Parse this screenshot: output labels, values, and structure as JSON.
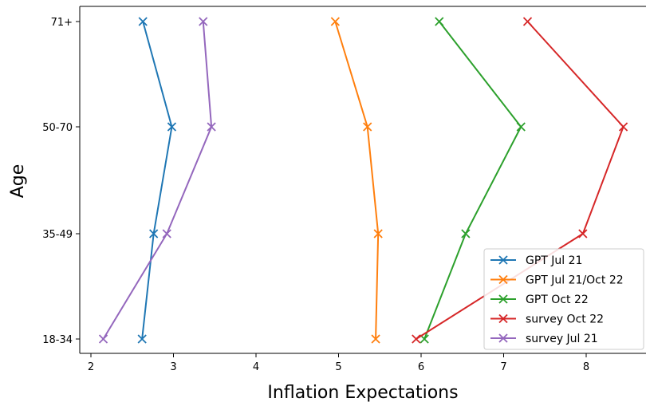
{
  "chart_data": {
    "type": "line",
    "orientation": "horizontal",
    "xlabel": "Inflation Expectations",
    "ylabel": "Age",
    "categories": [
      "18-34",
      "35-49",
      "50-70",
      "71+"
    ],
    "x_ticks": [
      2,
      3,
      4,
      5,
      6,
      7,
      8
    ],
    "xlim": [
      1.9,
      8.75
    ],
    "grid": false,
    "legend_position": "bottom-right",
    "marker": "x",
    "series": [
      {
        "name": "GPT Jul 21",
        "color": "#1f77b4",
        "values": [
          2.62,
          2.76,
          2.98,
          2.63
        ]
      },
      {
        "name": "GPT Jul 21/Oct 22",
        "color": "#ff7f0e",
        "values": [
          5.45,
          5.48,
          5.35,
          4.96
        ]
      },
      {
        "name": "GPT Oct 22",
        "color": "#2ca02c",
        "values": [
          6.04,
          6.54,
          7.21,
          6.22
        ]
      },
      {
        "name": "survey Oct 22",
        "color": "#d62728",
        "values": [
          5.94,
          7.96,
          8.45,
          7.29
        ]
      },
      {
        "name": "survey Jul 21",
        "color": "#9467bd",
        "values": [
          2.15,
          2.92,
          3.46,
          3.36
        ]
      }
    ]
  }
}
